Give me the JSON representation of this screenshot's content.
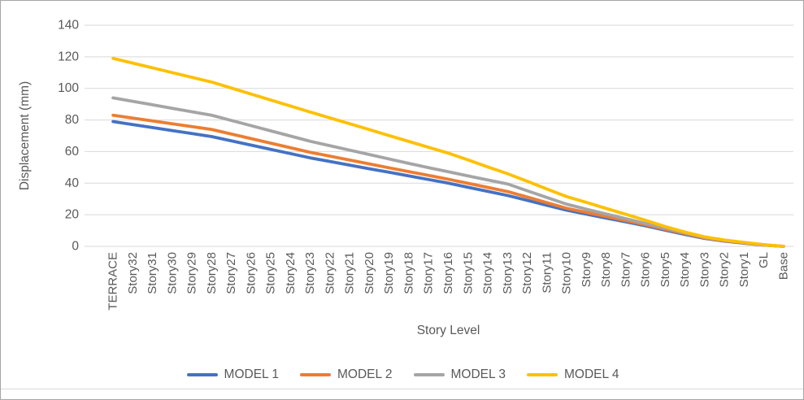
{
  "chart_data": {
    "type": "line",
    "title": "",
    "xlabel": "Story Level",
    "ylabel": "Displacement (mm)",
    "ylim": [
      0,
      140
    ],
    "ytick_step": 20,
    "grid": "horizontal-only",
    "gridline_color": "#d9d9d9",
    "axis_label_color": "#595959",
    "legend_position": "bottom",
    "categories": [
      "TERRACE",
      "Story32",
      "Story31",
      "Story30",
      "Story29",
      "Story28",
      "Story27",
      "Story26",
      "Story25",
      "Story24",
      "Story23",
      "Story22",
      "Story21",
      "Story20",
      "Story19",
      "Story18",
      "Story17",
      "Story16",
      "Story15",
      "Story14",
      "Story13",
      "Story12",
      "Story11",
      "Story10",
      "Story9",
      "Story8",
      "Story7",
      "Story6",
      "Story5",
      "Story4",
      "Story3",
      "Story2",
      "Story1",
      "GL",
      "Base"
    ],
    "series": [
      {
        "name": "MODEL 1",
        "color": "#4472C4",
        "values": [
          79,
          77.1,
          75.2,
          73.3,
          71.4,
          69.5,
          66.8,
          64.1,
          61.4,
          58.7,
          56,
          53.7,
          51.4,
          49.1,
          46.9,
          44.6,
          42.3,
          40,
          37.4,
          34.8,
          32.2,
          29.1,
          26,
          22.9,
          20.4,
          17.9,
          15.5,
          13,
          10.2,
          7.5,
          5,
          3.3,
          2,
          0.8,
          0
        ]
      },
      {
        "name": "MODEL 2",
        "color": "#ED7D31",
        "values": [
          83,
          81.2,
          79.4,
          77.6,
          75.8,
          74,
          71.1,
          68.2,
          65.3,
          62.4,
          59.5,
          57.1,
          54.6,
          52.2,
          49.7,
          47.3,
          44.9,
          42.5,
          39.9,
          37.3,
          34.7,
          31.2,
          27.6,
          24.1,
          21.5,
          18.9,
          16.3,
          13.7,
          10.8,
          8,
          5.3,
          3.5,
          2.2,
          0.9,
          0
        ]
      },
      {
        "name": "MODEL 3",
        "color": "#A5A5A5",
        "values": [
          94,
          91.8,
          89.6,
          87.4,
          85.2,
          83,
          79.7,
          76.4,
          73.1,
          69.8,
          66.5,
          63.7,
          60.9,
          58.1,
          55.3,
          52.5,
          49.8,
          47.2,
          44.6,
          42,
          39.5,
          35.2,
          30.9,
          26.7,
          23.5,
          20.5,
          17.5,
          14.5,
          11.5,
          8.5,
          5.7,
          3.8,
          2.4,
          1,
          0
        ]
      },
      {
        "name": "MODEL 4",
        "color": "#FFC000",
        "values": [
          119,
          116,
          113,
          110,
          107,
          104,
          100.2,
          96.4,
          92.6,
          88.8,
          85,
          81.3,
          77.6,
          73.9,
          70.1,
          66.4,
          62.7,
          59,
          54.7,
          50.3,
          46,
          41.2,
          36.3,
          31.5,
          27.8,
          24,
          20.3,
          16.5,
          12.5,
          9,
          6,
          4,
          2.5,
          1,
          0
        ]
      }
    ]
  }
}
